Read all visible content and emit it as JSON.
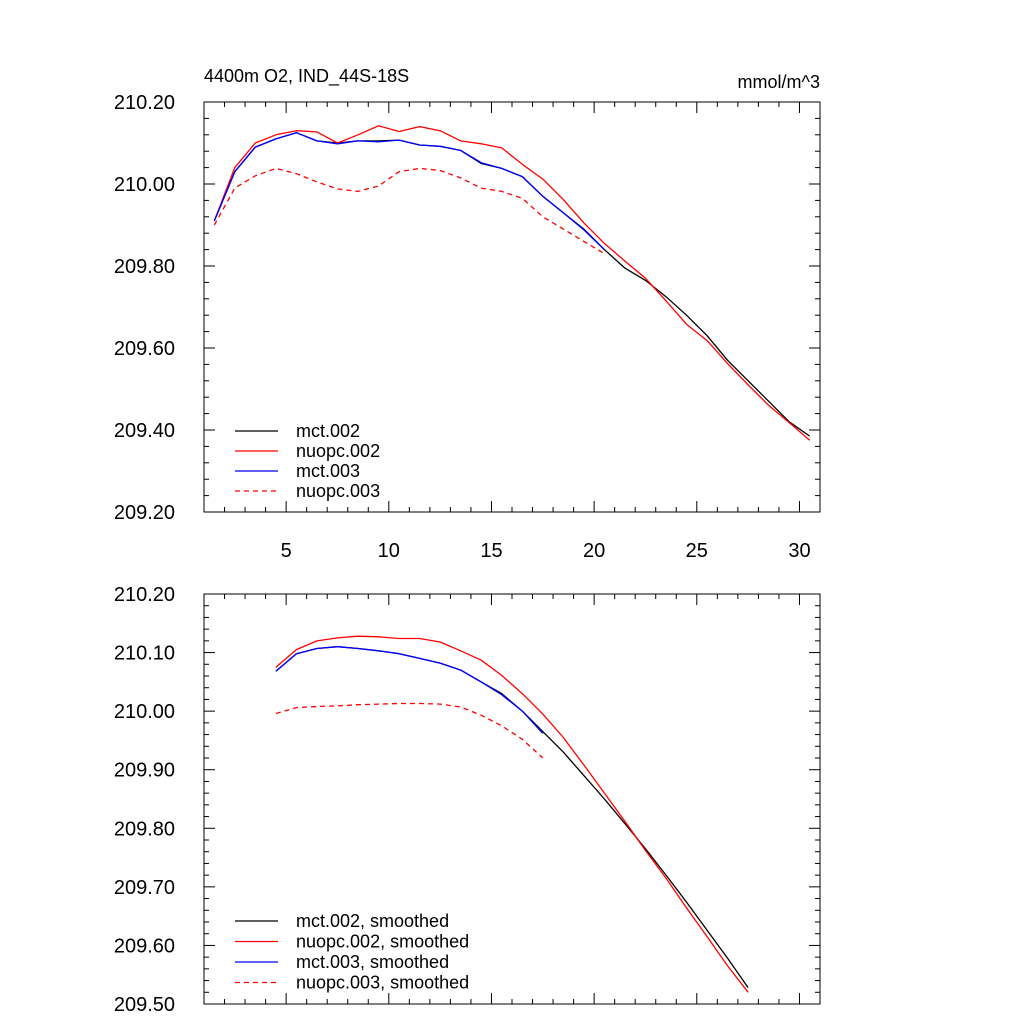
{
  "figure": {
    "title_left": "4400m O2, IND_44S-18S",
    "title_right": "mmol/m^3"
  },
  "colors": {
    "black": "#000000",
    "red": "#ff0000",
    "blue": "#0000ff"
  },
  "chart_data": [
    {
      "type": "line",
      "title": "4400m O2, IND_44S-18S",
      "units": "mmol/m^3",
      "xlabel": "",
      "ylabel": "",
      "xlim": [
        1,
        31
      ],
      "ylim": [
        209.2,
        210.2
      ],
      "xticks": [
        5,
        10,
        15,
        20,
        25,
        30
      ],
      "xtick_labels": [
        "5",
        "10",
        "15",
        "20",
        "25",
        "30"
      ],
      "yticks": [
        209.2,
        209.4,
        209.6,
        209.8,
        210.0,
        210.2
      ],
      "ytick_labels": [
        "209.20",
        "209.40",
        "209.60",
        "209.80",
        "210.00",
        "210.20"
      ],
      "legend_position": "bottom-left",
      "series": [
        {
          "name": "mct.002",
          "color": "#000000",
          "dash": "solid",
          "x": [
            1.5,
            2.5,
            3.5,
            4.5,
            5.5,
            6.5,
            7.5,
            8.5,
            9.5,
            10.5,
            11.5,
            12.5,
            13.5,
            14.5,
            15.5,
            16.5,
            17.5,
            18.5,
            19.5,
            20.5,
            21.5,
            22.5,
            23.5,
            24.5,
            25.5,
            26.5,
            27.5,
            28.5,
            29.5,
            30.5
          ],
          "values": [
            209.91,
            210.03,
            210.09,
            210.11,
            210.125,
            210.105,
            210.1,
            210.105,
            210.105,
            210.107,
            210.095,
            210.092,
            210.082,
            210.05,
            210.038,
            210.018,
            209.97,
            209.93,
            209.89,
            209.84,
            209.795,
            209.765,
            209.725,
            209.68,
            209.63,
            209.57,
            209.52,
            209.47,
            209.42,
            209.385
          ]
        },
        {
          "name": "nuopc.002",
          "color": "#ff0000",
          "dash": "solid",
          "x": [
            1.5,
            2.5,
            3.5,
            4.5,
            5.5,
            6.5,
            7.5,
            8.5,
            9.5,
            10.5,
            11.5,
            12.5,
            13.5,
            14.5,
            15.5,
            16.5,
            17.5,
            18.5,
            19.5,
            20.5,
            21.5,
            22.5,
            23.5,
            24.5,
            25.5,
            26.5,
            27.5,
            28.5,
            29.5,
            30.5
          ],
          "values": [
            209.91,
            210.04,
            210.1,
            210.12,
            210.13,
            210.127,
            210.1,
            210.12,
            210.142,
            210.128,
            210.14,
            210.13,
            210.105,
            210.098,
            210.088,
            210.048,
            210.012,
            209.962,
            209.905,
            209.855,
            209.812,
            209.77,
            209.715,
            209.658,
            209.618,
            209.562,
            209.51,
            209.46,
            209.418,
            209.375
          ]
        },
        {
          "name": "mct.003",
          "color": "#0000ff",
          "dash": "solid",
          "x": [
            1.5,
            2.5,
            3.5,
            4.5,
            5.5,
            6.5,
            7.5,
            8.5,
            9.5,
            10.5,
            11.5,
            12.5,
            13.5,
            14.5,
            15.5,
            16.5,
            17.5,
            18.5,
            19.5,
            20.5
          ],
          "values": [
            209.91,
            210.03,
            210.09,
            210.11,
            210.125,
            210.105,
            210.098,
            210.105,
            210.103,
            210.107,
            210.095,
            210.092,
            210.082,
            210.052,
            210.038,
            210.018,
            209.97,
            209.93,
            209.888,
            209.84
          ]
        },
        {
          "name": "nuopc.003",
          "color": "#ff0000",
          "dash": "dashed",
          "x": [
            1.5,
            2.5,
            3.5,
            4.5,
            5.5,
            6.5,
            7.5,
            8.5,
            9.5,
            10.5,
            11.5,
            12.5,
            13.5,
            14.5,
            15.5,
            16.5,
            17.5,
            18.5,
            19.5,
            20.5
          ],
          "values": [
            209.9,
            209.99,
            210.02,
            210.038,
            210.025,
            210.005,
            209.988,
            209.982,
            209.995,
            210.03,
            210.038,
            210.033,
            210.015,
            209.99,
            209.982,
            209.965,
            209.92,
            209.89,
            209.86,
            209.83
          ]
        }
      ]
    },
    {
      "type": "line",
      "title": "",
      "xlabel": "",
      "ylabel": "",
      "xlim": [
        1,
        31
      ],
      "ylim": [
        209.5,
        210.2
      ],
      "xticks": [
        5,
        10,
        15,
        20,
        25,
        30
      ],
      "xtick_labels": [],
      "yticks": [
        209.5,
        209.6,
        209.7,
        209.8,
        209.9,
        210.0,
        210.1,
        210.2
      ],
      "ytick_labels": [
        "209.50",
        "209.60",
        "209.70",
        "209.80",
        "209.90",
        "210.00",
        "210.10",
        "210.20"
      ],
      "legend_position": "bottom-left",
      "series": [
        {
          "name": "mct.002, smoothed",
          "color": "#000000",
          "dash": "solid",
          "x": [
            4.5,
            5.5,
            6.5,
            7.5,
            8.5,
            9.5,
            10.5,
            11.5,
            12.5,
            13.5,
            14.5,
            15.5,
            16.5,
            17.5,
            18.5,
            19.5,
            20.5,
            21.5,
            22.5,
            23.5,
            24.5,
            25.5,
            26.5,
            27.5
          ],
          "values": [
            210.068,
            210.098,
            210.107,
            210.11,
            210.107,
            210.103,
            210.098,
            210.09,
            210.082,
            210.07,
            210.05,
            210.03,
            210.0,
            209.965,
            209.93,
            209.89,
            209.85,
            209.808,
            209.765,
            209.72,
            209.674,
            209.626,
            209.578,
            209.528
          ]
        },
        {
          "name": "nuopc.002, smoothed",
          "color": "#ff0000",
          "dash": "solid",
          "x": [
            4.5,
            5.5,
            6.5,
            7.5,
            8.5,
            9.5,
            10.5,
            11.5,
            12.5,
            13.5,
            14.5,
            15.5,
            16.5,
            17.5,
            18.5,
            19.5,
            20.5,
            21.5,
            22.5,
            23.5,
            24.5,
            25.5,
            26.5,
            27.5
          ],
          "values": [
            210.075,
            210.105,
            210.12,
            210.125,
            210.128,
            210.127,
            210.124,
            210.124,
            210.118,
            210.103,
            210.087,
            210.061,
            210.03,
            209.995,
            209.955,
            209.908,
            209.86,
            209.812,
            209.762,
            209.715,
            209.664,
            209.615,
            209.565,
            209.52
          ]
        },
        {
          "name": "mct.003, smoothed",
          "color": "#0000ff",
          "dash": "solid",
          "x": [
            4.5,
            5.5,
            6.5,
            7.5,
            8.5,
            9.5,
            10.5,
            11.5,
            12.5,
            13.5,
            14.5,
            15.5,
            16.5,
            17.5
          ],
          "values": [
            210.068,
            210.098,
            210.107,
            210.11,
            210.107,
            210.103,
            210.098,
            210.09,
            210.082,
            210.07,
            210.05,
            210.028,
            210.0,
            209.962
          ]
        },
        {
          "name": "nuopc.003, smoothed",
          "color": "#ff0000",
          "dash": "dashed",
          "x": [
            4.5,
            5.5,
            6.5,
            7.5,
            8.5,
            9.5,
            10.5,
            11.5,
            12.5,
            13.5,
            14.5,
            15.5,
            16.5,
            17.5
          ],
          "values": [
            209.996,
            210.006,
            210.008,
            210.009,
            210.011,
            210.012,
            210.013,
            210.013,
            210.012,
            210.007,
            209.993,
            209.975,
            209.952,
            209.92
          ]
        }
      ]
    }
  ]
}
